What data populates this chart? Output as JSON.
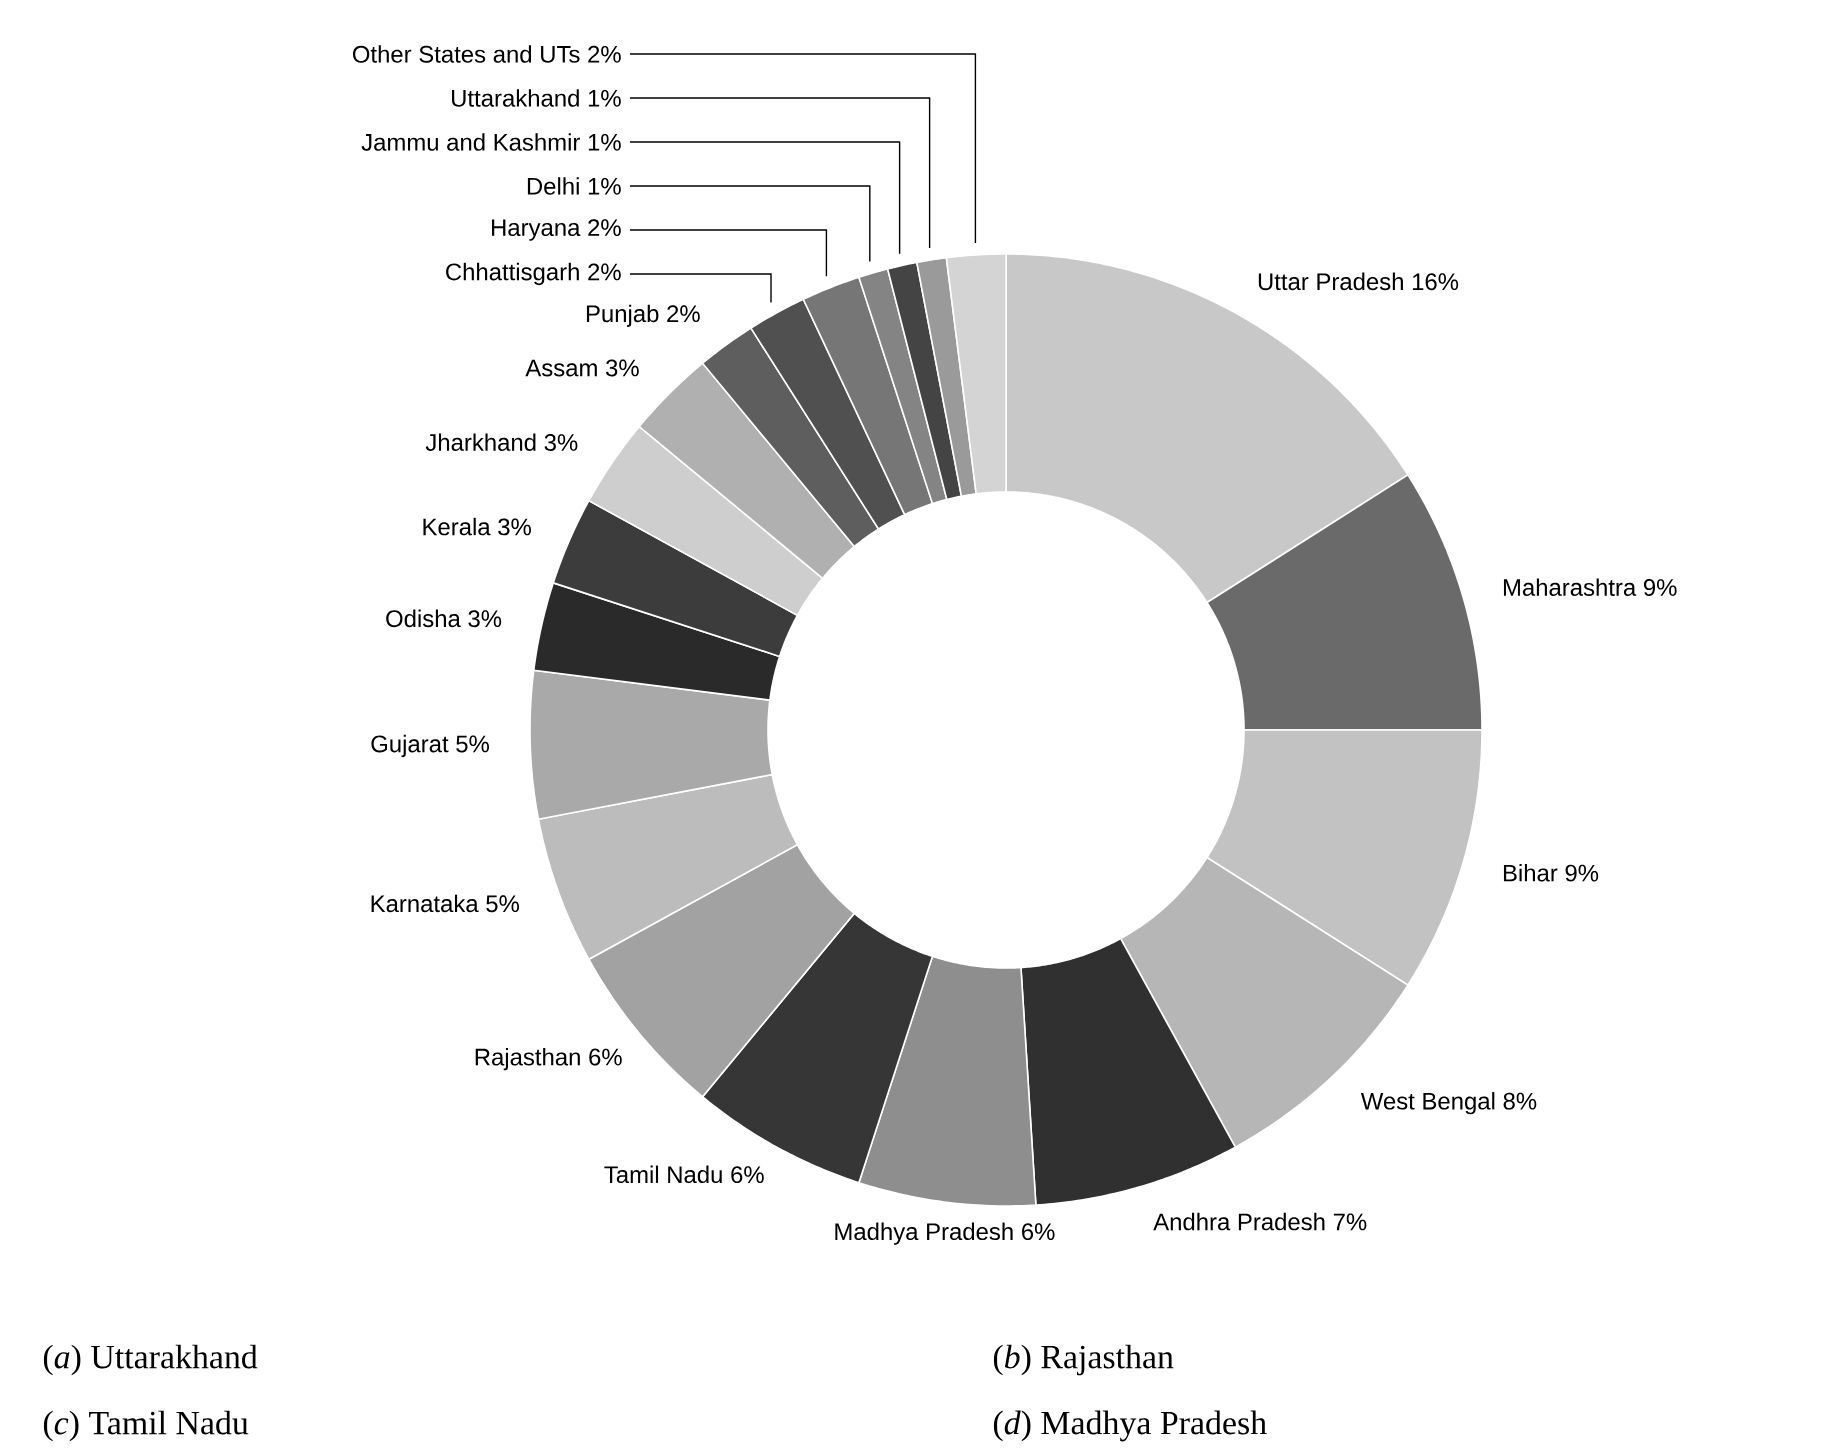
{
  "chart_data": {
    "type": "donut",
    "categories": [
      "Uttar Pradesh",
      "Maharashtra",
      "Bihar",
      "West Bengal",
      "Andhra Pradesh",
      "Madhya Pradesh",
      "Tamil Nadu",
      "Rajasthan",
      "Karnataka",
      "Gujarat",
      "Odisha",
      "Kerala",
      "Jharkhand",
      "Assam",
      "Punjab",
      "Chhattisgarh",
      "Haryana",
      "Delhi",
      "Jammu and Kashmir",
      "Uttarakhand",
      "Other States and UTs"
    ],
    "values": [
      16,
      9,
      9,
      8,
      7,
      6,
      6,
      6,
      5,
      5,
      3,
      3,
      3,
      3,
      2,
      2,
      2,
      1,
      1,
      1,
      2
    ],
    "value_labels": [
      "16%",
      "9%",
      "9%",
      "8%",
      "7%",
      "6%",
      "6%",
      "6%",
      "5%",
      "5%",
      "3%",
      "3%",
      "3%",
      "3%",
      "2%",
      "2%",
      "2%",
      "1%",
      "1%",
      "1%",
      "2%"
    ],
    "colors": [
      "#c8c8c8",
      "#6a6a6a",
      "#c2c2c2",
      "#b6b6b6",
      "#303030",
      "#8e8e8e",
      "#363636",
      "#a2a2a2",
      "#bcbcbc",
      "#a9a9a9",
      "#2a2a2a",
      "#3c3c3c",
      "#cecece",
      "#b0b0b0",
      "#5e5e5e",
      "#505050",
      "#767676",
      "#848484",
      "#444444",
      "#9a9a9a",
      "#d4d4d4"
    ],
    "annotations": [
      "(*a*) Uttarakhand",
      "(*b*) Rajasthan",
      "(*c*) Tamil Nadu",
      "(*d*) Madhya Pradesh"
    ]
  }
}
